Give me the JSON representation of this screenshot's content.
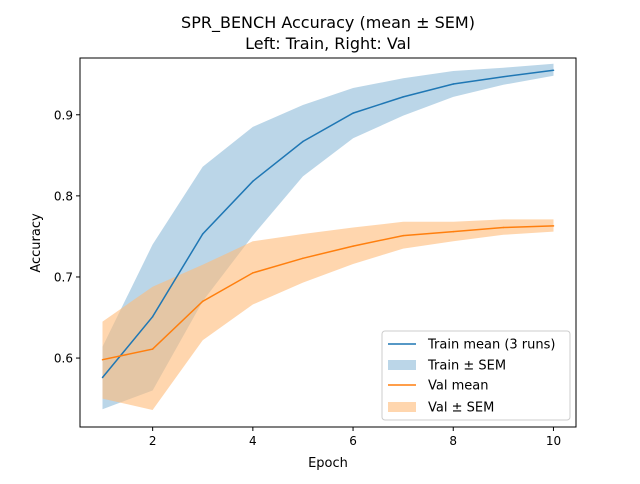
{
  "chart_data": {
    "type": "line",
    "title": "SPR_BENCH Accuracy (mean ± SEM)",
    "subtitle": "Left: Train, Right: Val",
    "xlabel": "Epoch",
    "ylabel": "Accuracy",
    "xlim": [
      0.55,
      10.45
    ],
    "ylim": [
      0.515,
      0.97
    ],
    "x": [
      1,
      2,
      3,
      4,
      5,
      6,
      7,
      8,
      9,
      10
    ],
    "x_ticks": [
      2,
      4,
      6,
      8,
      10
    ],
    "x_tick_labels": [
      "2",
      "4",
      "6",
      "8",
      "10"
    ],
    "y_ticks": [
      0.6,
      0.7,
      0.8,
      0.9
    ],
    "y_tick_labels": [
      "0.6",
      "0.7",
      "0.8",
      "0.9"
    ],
    "grid": false,
    "legend_position": "lower-right",
    "series": [
      {
        "name": "Train mean (3 runs)",
        "band_name": "Train ± SEM",
        "color": "#1f77b4",
        "band_color": "#1f77b4",
        "values": [
          0.576,
          0.651,
          0.753,
          0.818,
          0.867,
          0.902,
          0.922,
          0.938,
          0.947,
          0.955
        ],
        "lower": [
          0.537,
          0.56,
          0.67,
          0.751,
          0.824,
          0.871,
          0.899,
          0.922,
          0.937,
          0.948
        ],
        "upper": [
          0.614,
          0.74,
          0.836,
          0.885,
          0.912,
          0.933,
          0.945,
          0.954,
          0.958,
          0.963
        ]
      },
      {
        "name": "Val mean",
        "band_name": "Val ± SEM",
        "color": "#ff7f0e",
        "band_color": "#ffbb78",
        "values": [
          0.598,
          0.611,
          0.67,
          0.705,
          0.723,
          0.738,
          0.751,
          0.756,
          0.761,
          0.763
        ],
        "lower": [
          0.55,
          0.536,
          0.622,
          0.666,
          0.693,
          0.716,
          0.735,
          0.744,
          0.752,
          0.756
        ],
        "upper": [
          0.645,
          0.688,
          0.715,
          0.744,
          0.753,
          0.761,
          0.768,
          0.768,
          0.771,
          0.771
        ]
      }
    ]
  }
}
